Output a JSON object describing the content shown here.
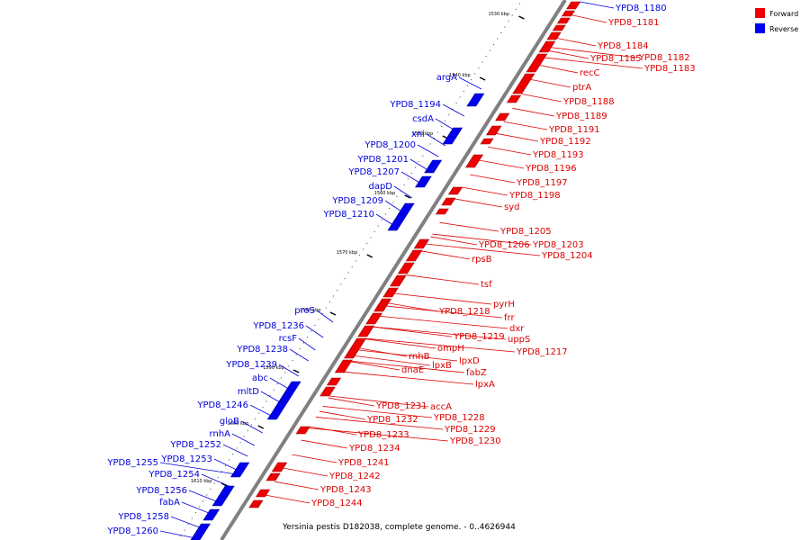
{
  "caption": "Yersinia pestis D182038, complete genome. - 0..4626944",
  "legend": [
    {
      "label": "Forward",
      "color": "#ee0000"
    },
    {
      "label": "Reverse",
      "color": "#0000ee"
    }
  ],
  "ticks": [
    "1530 kbp",
    "1540 kbp",
    "1550 kbp",
    "1560 kbp",
    "1570 kbp",
    "1580 kbp",
    "1590 kbp",
    "1600 kbp",
    "1610 kbp"
  ],
  "forward_labels": [
    "YPD8_1180",
    "YPD8_1181",
    "YPD8_1184",
    "YPD8_1182",
    "YPD8_1185",
    "YPD8_1183",
    "recC",
    "ptrA",
    "YPD8_1188",
    "YPD8_1189",
    "YPD8_1191",
    "YPD8_1192",
    "YPD8_1193",
    "YPD8_1196",
    "YPD8_1197",
    "YPD8_1198",
    "syd",
    "YPD8_1205",
    "YPD8_1206",
    "YPD8_1203",
    "YPD8_1204",
    "rpsB",
    "tsf",
    "pyrH",
    "YPD8_1218",
    "frr",
    "dxr",
    "YPD8_1219",
    "uppS",
    "YPD8_1217",
    "ompH",
    "rnhB",
    "lpxD",
    "lpxB",
    "dnaE",
    "fabZ",
    "lpxA",
    "YPD8_1231",
    "accA",
    "YPD8_1228",
    "YPD8_1232",
    "YPD8_1229",
    "YPD8_1233",
    "YPD8_1230",
    "YPD8_1234",
    "YPD8_1241",
    "YPD8_1242",
    "YPD8_1243",
    "YPD8_1244"
  ],
  "reverse_labels": [
    "argA",
    "YPD8_1194",
    "csdA",
    "xni",
    "YPD8_1200",
    "YPD8_1201",
    "YPD8_1207",
    "dapD",
    "YPD8_1209",
    "YPD8_1210",
    "proS",
    "YPD8_1236",
    "rcsF",
    "YPD8_1238",
    "YPD8_1239",
    "abc",
    "mltD",
    "YPD8_1246",
    "gloB",
    "rnhA",
    "YPD8_1252",
    "YPD8_1253",
    "YPD8_1255",
    "YPD8_1254",
    "YPD8_1256",
    "fabA",
    "YPD8_1258",
    "YPD8_1260"
  ]
}
